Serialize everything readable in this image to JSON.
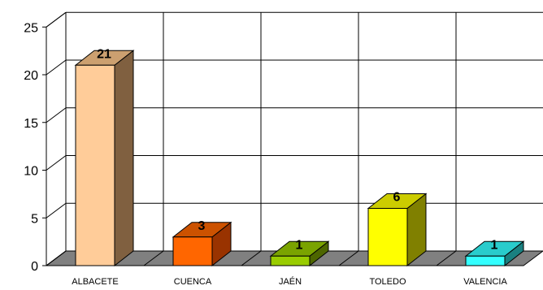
{
  "chart_data": {
    "type": "bar",
    "three_d": true,
    "categories": [
      "ALBACETE",
      "CUENCA",
      "JAÉN",
      "TOLEDO",
      "VALENCIA"
    ],
    "values": [
      21,
      3,
      1,
      6,
      1
    ],
    "data_labels": [
      "21",
      "3",
      "1",
      "6",
      "1"
    ],
    "ylim": [
      0,
      25
    ],
    "yticks": [
      0,
      5,
      10,
      15,
      20,
      25
    ],
    "ytick_labels": [
      "0",
      "5",
      "10",
      "15",
      "20",
      "25"
    ],
    "grid": true,
    "legend": "none",
    "colors": {
      "bars": [
        {
          "front": "#FFCC99",
          "side": "#806040",
          "top": "#CCA070"
        },
        {
          "front": "#FF6600",
          "side": "#993300",
          "top": "#CC5200"
        },
        {
          "front": "#99CC00",
          "side": "#4D6600",
          "top": "#7AA300"
        },
        {
          "front": "#FFFF00",
          "side": "#808000",
          "top": "#CCCC00"
        },
        {
          "front": "#33FFFF",
          "side": "#1A8080",
          "top": "#29CCCC"
        }
      ],
      "floor": "#808080",
      "grid": "#000000",
      "background": "#ffffff"
    }
  }
}
